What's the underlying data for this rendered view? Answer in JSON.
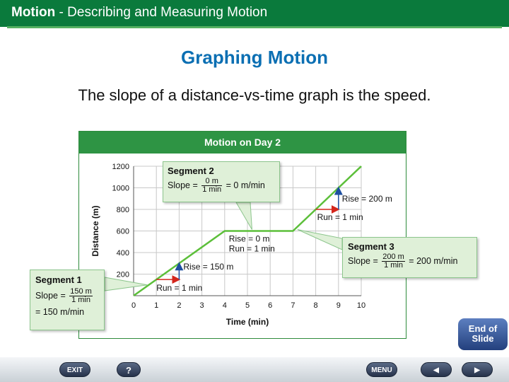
{
  "header": {
    "chapter": "Motion",
    "separator": " - ",
    "section": "Describing and Measuring Motion"
  },
  "slide": {
    "title": "Graphing Motion",
    "statement": "The slope of a distance-vs-time graph is the speed."
  },
  "colors": {
    "header_green": "#0a7a3c",
    "title_blue": "#0b6fb3",
    "chart_green": "#2e9444",
    "line_green": "#5cbf3a",
    "callout_fill": "#dff0d8",
    "rise_arrow": "#1d4fa0",
    "run_arrow": "#d4261c"
  },
  "chart_data": {
    "type": "line",
    "title": "Motion on Day 2",
    "xlabel": "Time (min)",
    "ylabel": "Distance (m)",
    "xlim": [
      0,
      10
    ],
    "ylim": [
      0,
      1200
    ],
    "xticks": [
      0,
      1,
      2,
      3,
      4,
      5,
      6,
      7,
      8,
      9,
      10
    ],
    "yticks": [
      200,
      400,
      600,
      800,
      1000,
      1200
    ],
    "grid": true,
    "series": [
      {
        "x": [
          0,
          4,
          7,
          10
        ],
        "y": [
          0,
          600,
          600,
          1200
        ]
      }
    ],
    "annotations": [
      {
        "rise_label": "Rise = 150 m",
        "run_label": "Run = 1 min"
      },
      {
        "rise_label": "Rise = 0 m",
        "run_label": "Run = 1 min"
      },
      {
        "rise_label": "Rise = 200 m",
        "run_label": "Run = 1 min"
      }
    ],
    "callouts": [
      {
        "title": "Segment 1",
        "slope_label": "Slope =",
        "num": "150 m",
        "den": "1 min",
        "result": "= 150 m/min"
      },
      {
        "title": "Segment 2",
        "slope_label": "Slope =",
        "num": "0 m",
        "den": "1 min",
        "result": "= 0 m/min"
      },
      {
        "title": "Segment 3",
        "slope_label": "Slope =",
        "num": "200 m",
        "den": "1 min",
        "result": "= 200 m/min"
      }
    ]
  },
  "nav": {
    "exit": "EXIT",
    "help": "?",
    "menu": "MENU",
    "prev": "◀",
    "next": "▶",
    "end_line1": "End of",
    "end_line2": "Slide"
  }
}
